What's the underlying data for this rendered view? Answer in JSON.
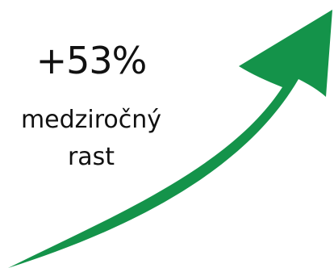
{
  "stat": {
    "value": "+53%",
    "label_line1": "medziročný",
    "label_line2": "rast"
  },
  "arrow": {
    "icon": "trend-up-arrow-icon",
    "color": "#14934a"
  }
}
